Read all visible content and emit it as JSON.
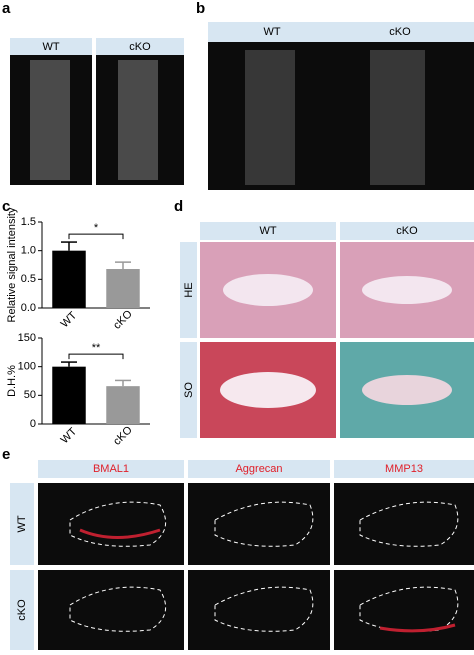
{
  "panel_labels": [
    "a",
    "b",
    "c",
    "d",
    "e"
  ],
  "panel_a": {
    "columns": [
      "WT",
      "cKO"
    ]
  },
  "panel_b": {
    "columns": [
      "WT",
      "cKO"
    ]
  },
  "panel_d": {
    "columns": [
      "WT",
      "cKO"
    ],
    "rows": [
      "HE",
      "SO"
    ]
  },
  "panel_e": {
    "columns": [
      "BMAL1",
      "Aggrecan",
      "MMP13"
    ],
    "rows": [
      "WT",
      "cKO"
    ]
  },
  "chart_data": [
    {
      "type": "bar",
      "y_label": "Relative signal intensity",
      "categories": [
        "WT",
        "cKO"
      ],
      "values": [
        1.0,
        0.68
      ],
      "errors": [
        0.15,
        0.12
      ],
      "colors": [
        "#000000",
        "#999999"
      ],
      "annotation": "*",
      "ylim": [
        0,
        1.5
      ],
      "yticks": [
        {
          "value": 0,
          "label": "0.0"
        },
        0.5,
        {
          "value": 1.0,
          "label": "1.0"
        },
        1.5
      ]
    },
    {
      "type": "bar",
      "y_label": "D.H.%",
      "categories": [
        "WT",
        "cKO"
      ],
      "values": [
        100,
        66
      ],
      "errors": [
        8,
        10
      ],
      "colors": [
        "#000000",
        "#999999"
      ],
      "annotation": "**",
      "ylim": [
        0,
        150
      ],
      "yticks": [
        0,
        50,
        100,
        150
      ]
    }
  ]
}
